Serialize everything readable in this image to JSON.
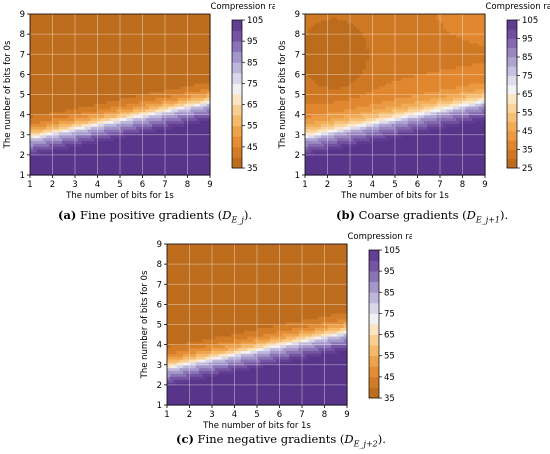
{
  "chart_data": [
    {
      "type": "heatmap",
      "subtype": "filled-contour",
      "xlabel": "The number of bits for 1s",
      "ylabel": "The number of bits for 0s",
      "x_ticks": [
        1,
        2,
        3,
        4,
        5,
        6,
        7,
        8,
        9
      ],
      "y_ticks": [
        1,
        2,
        3,
        4,
        5,
        6,
        7,
        8,
        9
      ],
      "xlim": [
        1,
        9
      ],
      "ylim": [
        1,
        9
      ],
      "grid": true,
      "colorbar": {
        "title": "Compression rate",
        "ticks": [
          35,
          45,
          55,
          65,
          75,
          85,
          95,
          105
        ],
        "range": [
          35,
          105
        ],
        "colormap": "PuOr",
        "placement": "right"
      },
      "caption": {
        "label": "(a)",
        "text": "Fine positive gradients (",
        "math_main": "D",
        "math_sub": "E_j",
        "tail": ")."
      }
    },
    {
      "type": "heatmap",
      "subtype": "filled-contour",
      "xlabel": "The number of bits for 1s",
      "ylabel": "The number of bits for 0s",
      "x_ticks": [
        1,
        2,
        3,
        4,
        5,
        6,
        7,
        8,
        9
      ],
      "y_ticks": [
        1,
        2,
        3,
        4,
        5,
        6,
        7,
        8,
        9
      ],
      "xlim": [
        1,
        9
      ],
      "ylim": [
        1,
        9
      ],
      "grid": true,
      "colorbar": {
        "title": "Compression rate",
        "ticks": [
          25,
          35,
          45,
          55,
          65,
          75,
          85,
          95,
          105
        ],
        "range": [
          25,
          105
        ],
        "colormap": "PuOr",
        "placement": "right"
      },
      "caption": {
        "label": "(b)",
        "text": "Coarse gradients (",
        "math_main": "D",
        "math_sub": "E_j+1",
        "tail": ")."
      }
    },
    {
      "type": "heatmap",
      "subtype": "filled-contour",
      "xlabel": "The number of bits for 1s",
      "ylabel": "The number of bits for 0s",
      "x_ticks": [
        1,
        2,
        3,
        4,
        5,
        6,
        7,
        8,
        9
      ],
      "y_ticks": [
        1,
        2,
        3,
        4,
        5,
        6,
        7,
        8,
        9
      ],
      "xlim": [
        1,
        9
      ],
      "ylim": [
        1,
        9
      ],
      "grid": true,
      "colorbar": {
        "title": "Compression rate",
        "ticks": [
          35,
          45,
          55,
          65,
          75,
          85,
          95,
          105
        ],
        "range": [
          35,
          105
        ],
        "colormap": "PuOr",
        "placement": "right"
      },
      "caption": {
        "label": "(c)",
        "text": "Fine negative gradients (",
        "math_main": "D",
        "math_sub": "E_j+2",
        "tail": ")."
      }
    }
  ]
}
